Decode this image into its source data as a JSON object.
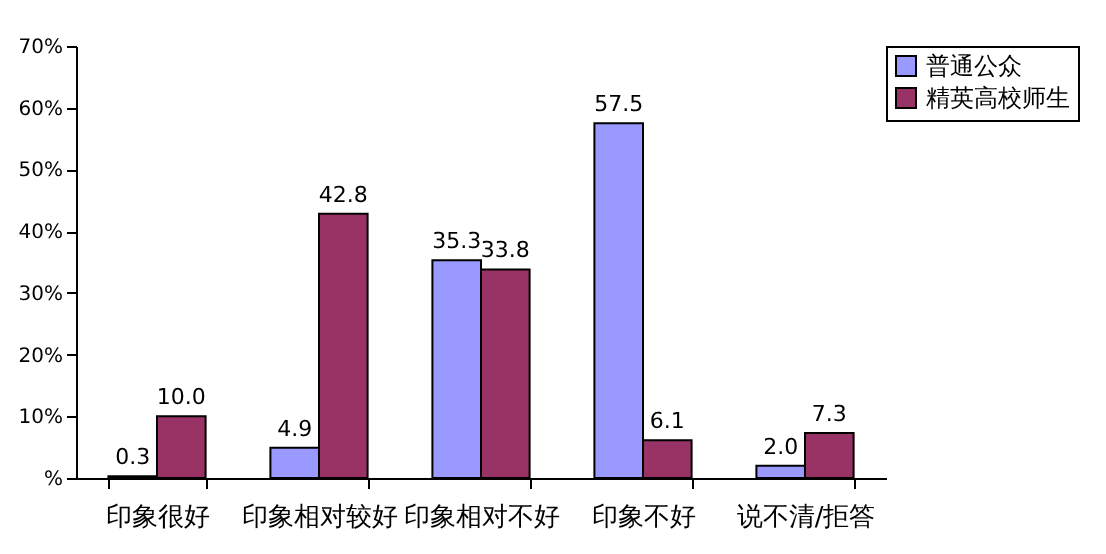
{
  "chart_data": {
    "type": "bar",
    "categories": [
      "印象很好",
      "印象相对较好",
      "印象相对不好",
      "印象不好",
      "说不清/拒答"
    ],
    "series": [
      {
        "name": "普通公众",
        "color": "#9999ff",
        "values": [
          0.3,
          4.9,
          35.3,
          57.5,
          2.0
        ],
        "value_labels": [
          "0.3",
          "4.9",
          "35.3",
          "57.5",
          "2.0"
        ]
      },
      {
        "name": "精英高校师生",
        "color": "#993366",
        "values": [
          10.0,
          42.8,
          33.8,
          6.1,
          7.3
        ],
        "value_labels": [
          "10.0",
          "42.8",
          "33.8",
          "6.1",
          "7.3"
        ]
      }
    ],
    "ylim": [
      0,
      70
    ],
    "yticks": [
      {
        "value": 0,
        "label": "%"
      },
      {
        "value": 10,
        "label": "10%"
      },
      {
        "value": 20,
        "label": "20%"
      },
      {
        "value": 30,
        "label": "30%"
      },
      {
        "value": 40,
        "label": "40%"
      },
      {
        "value": 50,
        "label": "50%"
      },
      {
        "value": 60,
        "label": "60%"
      },
      {
        "value": 70,
        "label": "70%"
      }
    ],
    "grid": false,
    "legend": "top right"
  }
}
